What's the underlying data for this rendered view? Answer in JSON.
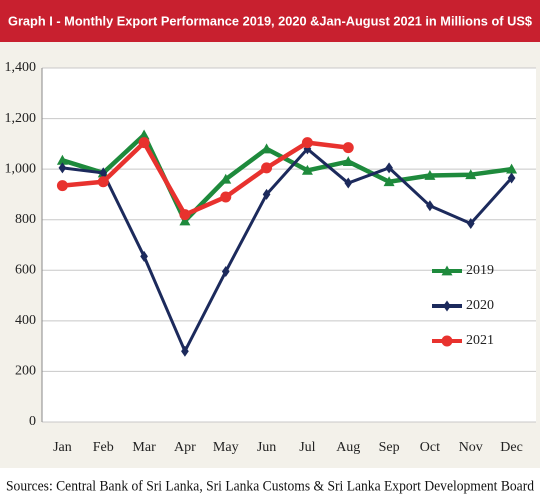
{
  "chart_data": {
    "type": "line",
    "title": "Graph I - Monthly Export Performance 2019, 2020 &Jan-August 2021 in Millions of US$",
    "source": "Sources: Central Bank of Sri Lanka, Sri Lanka Customs & Sri Lanka Export Development Board",
    "categories": [
      "Jan",
      "Feb",
      "Mar",
      "Apr",
      "May",
      "Jun",
      "Jul",
      "Aug",
      "Sep",
      "Oct",
      "Nov",
      "Dec"
    ],
    "series": [
      {
        "name": "2019",
        "color": "#1e8a3c",
        "marker": "triangle",
        "values": [
          1035,
          985,
          1135,
          795,
          960,
          1080,
          995,
          1030,
          950,
          975,
          978,
          1000
        ]
      },
      {
        "name": "2020",
        "color": "#1c2a5c",
        "marker": "diamond",
        "values": [
          1005,
          985,
          655,
          280,
          595,
          900,
          1080,
          945,
          1005,
          855,
          785,
          965
        ]
      },
      {
        "name": "2021",
        "color": "#e8322e",
        "marker": "circle",
        "values": [
          935,
          950,
          1105,
          820,
          890,
          1005,
          1105,
          1085,
          null,
          null,
          null,
          null
        ]
      }
    ],
    "ylim": [
      0,
      1400
    ],
    "yticks": [
      0,
      200,
      400,
      600,
      800,
      {
        "value": 1000,
        "label": "1,000"
      },
      {
        "value": 1200,
        "label": "1,200"
      },
      {
        "value": 1400,
        "label": "1,400"
      }
    ],
    "grid": true
  }
}
